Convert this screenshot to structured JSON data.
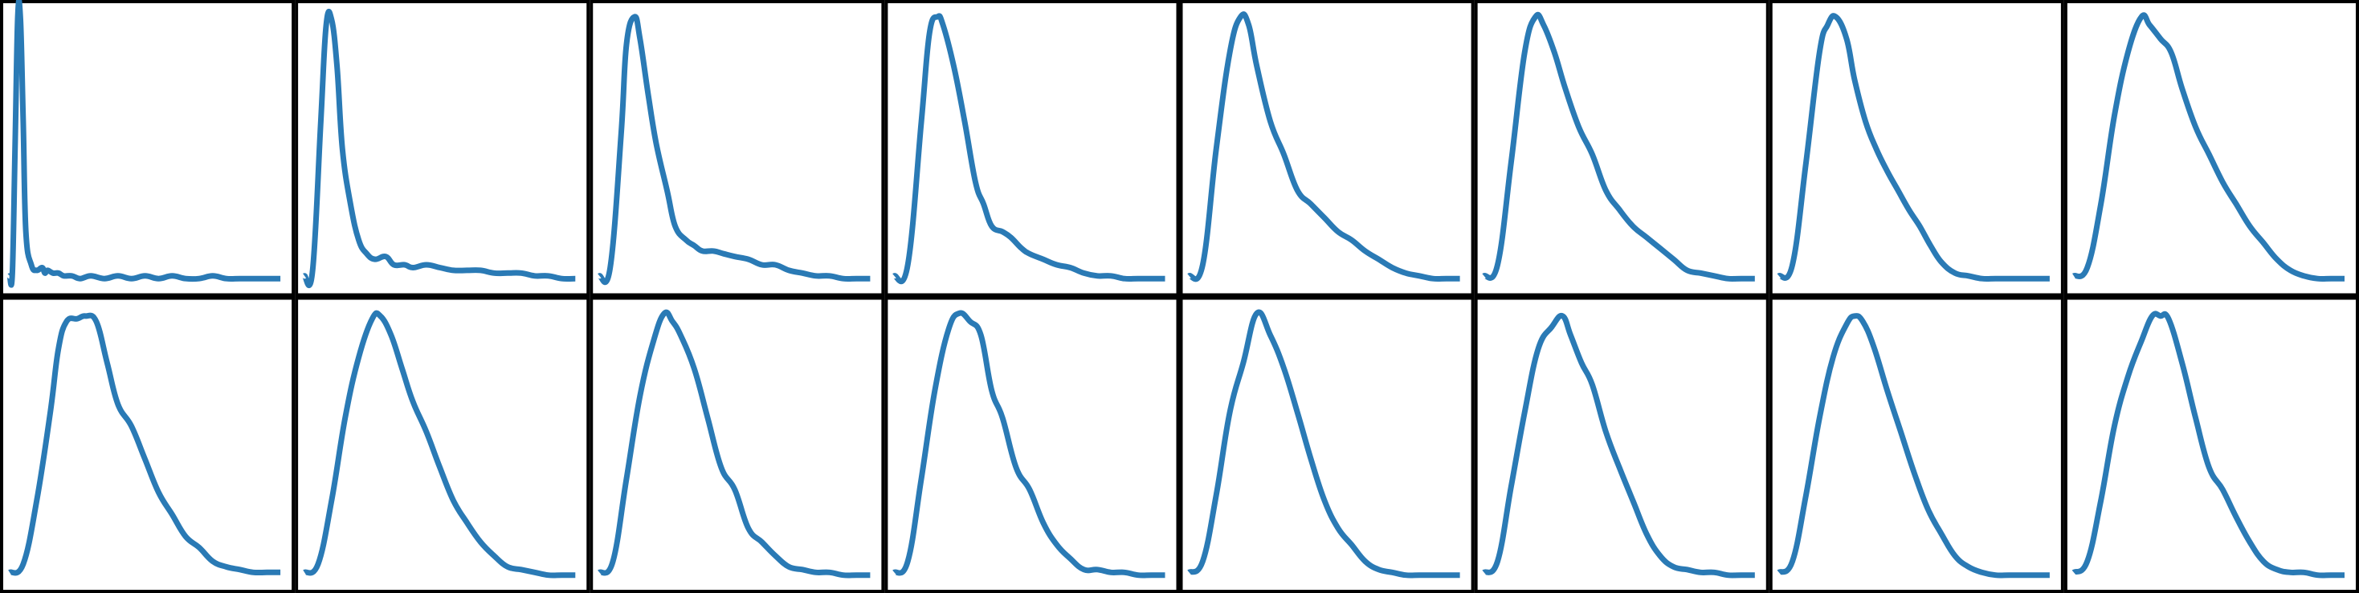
{
  "figure": {
    "colors": {
      "line": "#2a7ab5",
      "frame": "#000000",
      "background": "#ffffff"
    },
    "grid_rows": 2,
    "grid_cols": 8,
    "ticks_visible": false,
    "grid": false
  },
  "chart_data": [
    {
      "type": "line",
      "panel": 1,
      "ylim": [
        0,
        1
      ],
      "x": [
        0.0,
        0.01,
        0.02,
        0.03,
        0.04,
        0.05,
        0.06,
        0.08,
        0.1,
        0.12,
        0.13,
        0.14,
        0.16,
        0.18,
        0.2,
        0.23,
        0.26,
        0.3,
        0.35,
        0.4,
        0.45,
        0.5,
        0.55,
        0.6,
        0.65,
        0.7,
        0.75,
        0.8,
        0.85,
        0.9,
        0.95,
        1.0
      ],
      "series": [
        {
          "values": [
            0.04,
            0.05,
            0.5,
            0.98,
            0.97,
            0.6,
            0.2,
            0.08,
            0.06,
            0.07,
            0.05,
            0.06,
            0.05,
            0.05,
            0.04,
            0.04,
            0.03,
            0.04,
            0.03,
            0.04,
            0.03,
            0.04,
            0.03,
            0.04,
            0.03,
            0.03,
            0.04,
            0.03,
            0.03,
            0.03,
            0.03,
            0.03
          ]
        }
      ]
    },
    {
      "type": "line",
      "panel": 2,
      "ylim": [
        0,
        1
      ],
      "x": [
        0.0,
        0.03,
        0.06,
        0.08,
        0.1,
        0.12,
        0.14,
        0.17,
        0.2,
        0.23,
        0.26,
        0.3,
        0.33,
        0.37,
        0.4,
        0.45,
        0.5,
        0.55,
        0.6,
        0.65,
        0.7,
        0.75,
        0.8,
        0.85,
        0.9,
        0.95,
        1.0
      ],
      "series": [
        {
          "values": [
            0.04,
            0.06,
            0.6,
            0.95,
            0.97,
            0.8,
            0.5,
            0.3,
            0.17,
            0.12,
            0.1,
            0.11,
            0.08,
            0.08,
            0.07,
            0.08,
            0.07,
            0.06,
            0.06,
            0.06,
            0.05,
            0.05,
            0.05,
            0.04,
            0.04,
            0.03,
            0.03
          ]
        }
      ]
    },
    {
      "type": "line",
      "panel": 3,
      "ylim": [
        0,
        1
      ],
      "x": [
        0.0,
        0.04,
        0.08,
        0.1,
        0.13,
        0.15,
        0.18,
        0.21,
        0.25,
        0.28,
        0.32,
        0.35,
        0.38,
        0.42,
        0.46,
        0.5,
        0.55,
        0.6,
        0.65,
        0.7,
        0.75,
        0.8,
        0.85,
        0.9,
        0.95,
        1.0
      ],
      "series": [
        {
          "values": [
            0.04,
            0.07,
            0.55,
            0.88,
            0.98,
            0.9,
            0.7,
            0.52,
            0.35,
            0.22,
            0.17,
            0.15,
            0.13,
            0.13,
            0.12,
            0.11,
            0.1,
            0.08,
            0.08,
            0.06,
            0.05,
            0.04,
            0.04,
            0.03,
            0.03,
            0.03
          ]
        }
      ]
    },
    {
      "type": "line",
      "panel": 4,
      "ylim": [
        0,
        1
      ],
      "x": [
        0.0,
        0.05,
        0.1,
        0.13,
        0.16,
        0.18,
        0.22,
        0.26,
        0.3,
        0.33,
        0.36,
        0.4,
        0.43,
        0.47,
        0.5,
        0.55,
        0.6,
        0.65,
        0.7,
        0.75,
        0.8,
        0.85,
        0.9,
        0.95,
        1.0
      ],
      "series": [
        {
          "values": [
            0.04,
            0.08,
            0.6,
            0.92,
            0.98,
            0.95,
            0.8,
            0.6,
            0.38,
            0.3,
            0.22,
            0.2,
            0.18,
            0.14,
            0.12,
            0.1,
            0.08,
            0.07,
            0.05,
            0.04,
            0.04,
            0.03,
            0.03,
            0.03,
            0.03
          ]
        }
      ]
    },
    {
      "type": "line",
      "panel": 5,
      "ylim": [
        0,
        1
      ],
      "x": [
        0.0,
        0.05,
        0.1,
        0.15,
        0.19,
        0.22,
        0.25,
        0.3,
        0.35,
        0.4,
        0.45,
        0.5,
        0.55,
        0.6,
        0.65,
        0.7,
        0.75,
        0.8,
        0.85,
        0.9,
        0.95,
        1.0
      ],
      "series": [
        {
          "values": [
            0.04,
            0.08,
            0.5,
            0.85,
            0.98,
            0.95,
            0.8,
            0.6,
            0.48,
            0.35,
            0.3,
            0.25,
            0.2,
            0.17,
            0.13,
            0.1,
            0.07,
            0.05,
            0.04,
            0.03,
            0.03,
            0.03
          ]
        }
      ]
    },
    {
      "type": "line",
      "panel": 6,
      "ylim": [
        0,
        1
      ],
      "x": [
        0.0,
        0.05,
        0.1,
        0.15,
        0.19,
        0.22,
        0.26,
        0.3,
        0.35,
        0.4,
        0.45,
        0.5,
        0.55,
        0.6,
        0.65,
        0.7,
        0.75,
        0.8,
        0.85,
        0.9,
        0.95,
        1.0
      ],
      "series": [
        {
          "values": [
            0.04,
            0.08,
            0.45,
            0.85,
            0.98,
            0.95,
            0.85,
            0.72,
            0.58,
            0.48,
            0.35,
            0.28,
            0.22,
            0.18,
            0.14,
            0.1,
            0.06,
            0.05,
            0.04,
            0.03,
            0.03,
            0.03
          ]
        }
      ]
    },
    {
      "type": "line",
      "panel": 7,
      "ylim": [
        0,
        1
      ],
      "x": [
        0.0,
        0.05,
        0.1,
        0.15,
        0.18,
        0.21,
        0.25,
        0.28,
        0.32,
        0.36,
        0.4,
        0.44,
        0.48,
        0.52,
        0.56,
        0.6,
        0.65,
        0.7,
        0.75,
        0.8,
        0.85,
        0.9,
        0.95,
        1.0
      ],
      "series": [
        {
          "values": [
            0.04,
            0.08,
            0.45,
            0.85,
            0.95,
            0.98,
            0.9,
            0.75,
            0.6,
            0.5,
            0.42,
            0.35,
            0.28,
            0.22,
            0.15,
            0.09,
            0.05,
            0.04,
            0.03,
            0.03,
            0.03,
            0.03,
            0.03,
            0.03
          ]
        }
      ]
    },
    {
      "type": "line",
      "panel": 8,
      "ylim": [
        0,
        1
      ],
      "x": [
        0.0,
        0.05,
        0.1,
        0.15,
        0.2,
        0.25,
        0.28,
        0.32,
        0.36,
        0.4,
        0.45,
        0.5,
        0.55,
        0.6,
        0.65,
        0.7,
        0.75,
        0.8,
        0.85,
        0.9,
        0.95,
        1.0
      ],
      "series": [
        {
          "values": [
            0.04,
            0.07,
            0.3,
            0.62,
            0.85,
            0.98,
            0.95,
            0.9,
            0.85,
            0.72,
            0.58,
            0.48,
            0.38,
            0.3,
            0.22,
            0.16,
            0.1,
            0.06,
            0.04,
            0.03,
            0.03,
            0.03
          ]
        }
      ]
    },
    {
      "type": "line",
      "panel": 9,
      "ylim": [
        0,
        1
      ],
      "x": [
        0.0,
        0.05,
        0.1,
        0.15,
        0.18,
        0.21,
        0.25,
        0.28,
        0.32,
        0.36,
        0.4,
        0.45,
        0.5,
        0.55,
        0.6,
        0.65,
        0.7,
        0.75,
        0.8,
        0.85,
        0.9,
        0.95,
        1.0
      ],
      "series": [
        {
          "values": [
            0.04,
            0.07,
            0.3,
            0.62,
            0.85,
            0.95,
            0.96,
            0.97,
            0.95,
            0.8,
            0.65,
            0.57,
            0.45,
            0.33,
            0.25,
            0.17,
            0.13,
            0.08,
            0.06,
            0.05,
            0.04,
            0.04,
            0.04
          ]
        }
      ]
    },
    {
      "type": "line",
      "panel": 10,
      "ylim": [
        0,
        1
      ],
      "x": [
        0.0,
        0.05,
        0.1,
        0.15,
        0.2,
        0.25,
        0.28,
        0.32,
        0.36,
        0.4,
        0.45,
        0.5,
        0.55,
        0.6,
        0.65,
        0.7,
        0.75,
        0.8,
        0.85,
        0.9,
        0.95,
        1.0
      ],
      "series": [
        {
          "values": [
            0.04,
            0.07,
            0.3,
            0.6,
            0.82,
            0.96,
            0.97,
            0.9,
            0.78,
            0.66,
            0.55,
            0.42,
            0.3,
            0.22,
            0.15,
            0.1,
            0.06,
            0.05,
            0.04,
            0.03,
            0.03,
            0.03
          ]
        }
      ]
    },
    {
      "type": "line",
      "panel": 11,
      "ylim": [
        0,
        1
      ],
      "x": [
        0.0,
        0.05,
        0.1,
        0.15,
        0.2,
        0.24,
        0.27,
        0.3,
        0.35,
        0.4,
        0.45,
        0.5,
        0.55,
        0.6,
        0.65,
        0.7,
        0.75,
        0.8,
        0.85,
        0.9,
        0.95,
        1.0
      ],
      "series": [
        {
          "values": [
            0.04,
            0.08,
            0.38,
            0.68,
            0.88,
            0.98,
            0.95,
            0.9,
            0.78,
            0.6,
            0.42,
            0.34,
            0.2,
            0.15,
            0.1,
            0.06,
            0.05,
            0.04,
            0.04,
            0.03,
            0.03,
            0.03
          ]
        }
      ]
    },
    {
      "type": "line",
      "panel": 12,
      "ylim": [
        0,
        1
      ],
      "x": [
        0.0,
        0.05,
        0.1,
        0.15,
        0.2,
        0.24,
        0.28,
        0.32,
        0.36,
        0.4,
        0.45,
        0.5,
        0.55,
        0.6,
        0.65,
        0.7,
        0.75,
        0.8,
        0.85,
        0.9,
        0.95,
        1.0
      ],
      "series": [
        {
          "values": [
            0.04,
            0.08,
            0.38,
            0.7,
            0.92,
            0.98,
            0.95,
            0.9,
            0.7,
            0.6,
            0.42,
            0.34,
            0.22,
            0.14,
            0.09,
            0.05,
            0.05,
            0.04,
            0.04,
            0.03,
            0.03,
            0.03
          ]
        }
      ]
    },
    {
      "type": "line",
      "panel": 13,
      "ylim": [
        0,
        1
      ],
      "x": [
        0.0,
        0.05,
        0.1,
        0.15,
        0.2,
        0.25,
        0.3,
        0.35,
        0.4,
        0.45,
        0.5,
        0.55,
        0.6,
        0.65,
        0.7,
        0.75,
        0.8,
        0.85,
        0.9,
        0.95,
        1.0
      ],
      "series": [
        {
          "values": [
            0.04,
            0.08,
            0.32,
            0.62,
            0.8,
            0.98,
            0.9,
            0.78,
            0.62,
            0.45,
            0.3,
            0.2,
            0.14,
            0.08,
            0.05,
            0.04,
            0.03,
            0.03,
            0.03,
            0.03,
            0.03
          ]
        }
      ]
    },
    {
      "type": "line",
      "panel": 14,
      "ylim": [
        0,
        1
      ],
      "x": [
        0.0,
        0.05,
        0.1,
        0.15,
        0.2,
        0.25,
        0.29,
        0.32,
        0.36,
        0.4,
        0.45,
        0.5,
        0.55,
        0.6,
        0.65,
        0.7,
        0.75,
        0.8,
        0.85,
        0.9,
        0.95,
        1.0
      ],
      "series": [
        {
          "values": [
            0.04,
            0.08,
            0.35,
            0.62,
            0.85,
            0.93,
            0.97,
            0.9,
            0.8,
            0.72,
            0.55,
            0.42,
            0.3,
            0.18,
            0.1,
            0.06,
            0.05,
            0.04,
            0.04,
            0.03,
            0.03,
            0.03
          ]
        }
      ]
    },
    {
      "type": "line",
      "panel": 15,
      "ylim": [
        0,
        1
      ],
      "x": [
        0.0,
        0.05,
        0.1,
        0.15,
        0.2,
        0.25,
        0.28,
        0.31,
        0.35,
        0.4,
        0.45,
        0.5,
        0.55,
        0.6,
        0.65,
        0.7,
        0.75,
        0.8,
        0.85,
        0.9,
        0.95,
        1.0
      ],
      "series": [
        {
          "values": [
            0.04,
            0.08,
            0.32,
            0.6,
            0.82,
            0.94,
            0.97,
            0.95,
            0.86,
            0.7,
            0.55,
            0.4,
            0.27,
            0.18,
            0.1,
            0.06,
            0.04,
            0.03,
            0.03,
            0.03,
            0.03,
            0.03
          ]
        }
      ]
    },
    {
      "type": "line",
      "panel": 16,
      "ylim": [
        0,
        1
      ],
      "x": [
        0.0,
        0.05,
        0.1,
        0.15,
        0.2,
        0.25,
        0.29,
        0.32,
        0.35,
        0.4,
        0.45,
        0.5,
        0.55,
        0.6,
        0.65,
        0.7,
        0.75,
        0.8,
        0.85,
        0.9,
        0.95,
        1.0
      ],
      "series": [
        {
          "values": [
            0.04,
            0.08,
            0.3,
            0.57,
            0.75,
            0.88,
            0.97,
            0.97,
            0.96,
            0.8,
            0.6,
            0.42,
            0.34,
            0.24,
            0.15,
            0.08,
            0.05,
            0.04,
            0.04,
            0.03,
            0.03,
            0.03
          ]
        }
      ]
    }
  ]
}
